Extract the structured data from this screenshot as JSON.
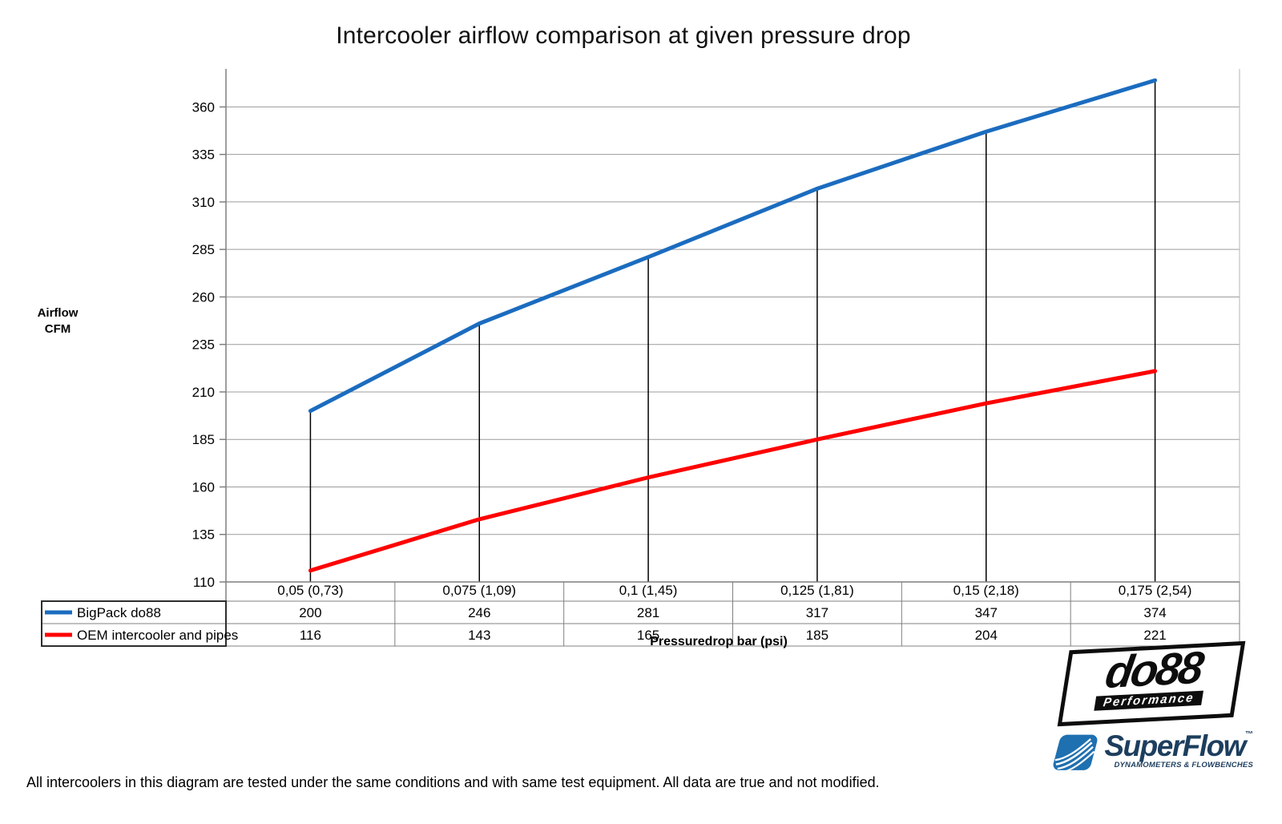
{
  "title": "Intercooler airflow comparison at given pressure drop",
  "y_axis_label": {
    "line1": "Airflow",
    "line2": "CFM"
  },
  "x_axis_title": "Pressuredrop bar (psi)",
  "footer_note": "All intercoolers in this diagram are tested under the same conditions and with same test equipment. All data are true and not modified.",
  "logos": {
    "do88_name": "do88",
    "do88_subtitle": "Performance",
    "superflow_name": "SuperFlow",
    "superflow_tm": "™",
    "superflow_subtitle": "DYNAMOMETERS & FLOWBENCHES"
  },
  "chart_data": {
    "type": "line",
    "title": "Intercooler airflow comparison at given pressure drop",
    "categories": [
      "0,05 (0,73)",
      "0,075 (1,09)",
      "0,1 (1,45)",
      "0,125 (1,81)",
      "0,15 (2,18)",
      "0,175 (2,54)"
    ],
    "series": [
      {
        "name": "BigPack do88",
        "color": "#1B6CBF",
        "values": [
          200,
          246,
          281,
          317,
          347,
          374
        ]
      },
      {
        "name": "OEM intercooler and pipes",
        "color": "#FF0000",
        "values": [
          116,
          143,
          165,
          185,
          204,
          221
        ]
      }
    ],
    "xlabel": "Pressuredrop bar (psi)",
    "ylabel": "Airflow CFM",
    "yticks": [
      110,
      135,
      160,
      185,
      210,
      235,
      260,
      285,
      310,
      335,
      360
    ],
    "ylim": [
      110,
      380
    ],
    "grid": "horizontal",
    "droplines_to_first_series": true,
    "legend_position": "data-table-left",
    "colors": {
      "gridline": "#9C9C9C",
      "axis": "#7F7F7F",
      "dropline": "#000000",
      "table_border": "#808080",
      "table_outline": "#2E2E2E"
    }
  }
}
